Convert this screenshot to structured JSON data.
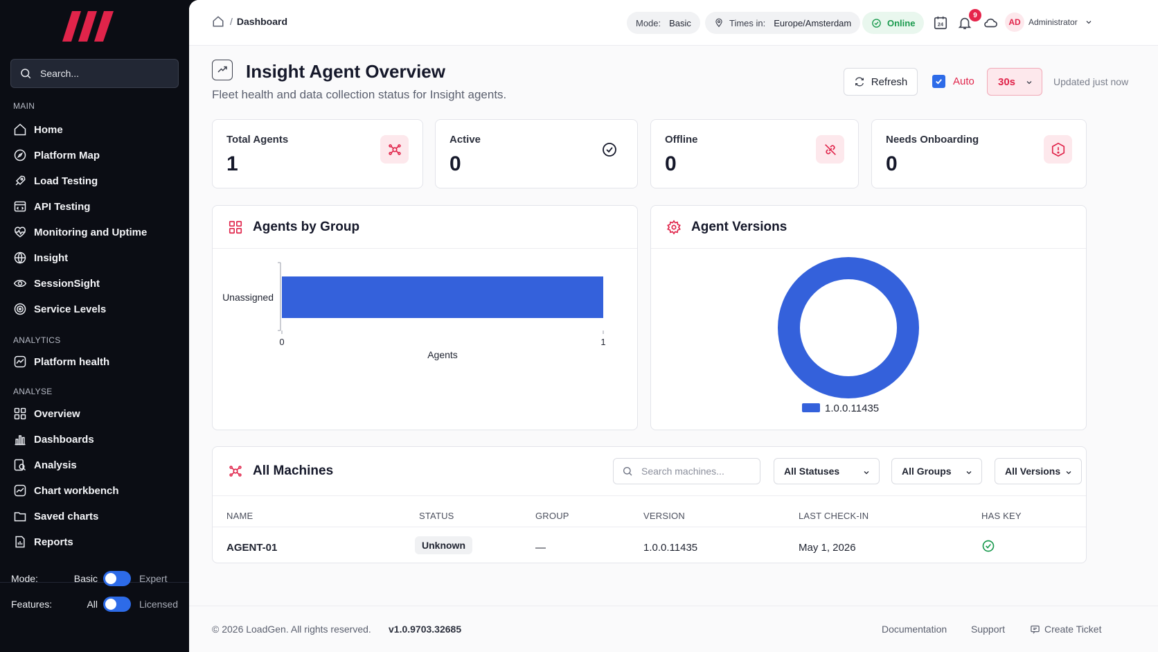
{
  "sidebar": {
    "search_placeholder": "Search...",
    "sections": {
      "main": "MAIN",
      "analytics": "ANALYTICS",
      "analyse": "ANALYSE"
    },
    "main_items": [
      {
        "label": "Home",
        "icon": "home-icon"
      },
      {
        "label": "Platform Map",
        "icon": "compass-icon"
      },
      {
        "label": "Load Testing",
        "icon": "rocket-icon"
      },
      {
        "label": "API Testing",
        "icon": "api-icon"
      },
      {
        "label": "Monitoring and Uptime",
        "icon": "heart-pulse-icon"
      },
      {
        "label": "Insight",
        "icon": "globe-icon"
      },
      {
        "label": "SessionSight",
        "icon": "eye-icon"
      },
      {
        "label": "Service Levels",
        "icon": "target-icon"
      }
    ],
    "analytics_items": [
      {
        "label": "Platform health",
        "icon": "activity-icon"
      }
    ],
    "analyse_items": [
      {
        "label": "Overview",
        "icon": "grid-icon"
      },
      {
        "label": "Dashboards",
        "icon": "bar-chart-icon"
      },
      {
        "label": "Analysis",
        "icon": "analysis-icon"
      },
      {
        "label": "Chart workbench",
        "icon": "chart-line-icon"
      },
      {
        "label": "Saved charts",
        "icon": "folder-icon"
      },
      {
        "label": "Reports",
        "icon": "report-icon"
      }
    ],
    "mode": {
      "label": "Mode:",
      "option_on": "Basic",
      "option_off": "Expert"
    },
    "features": {
      "label": "Features:",
      "option_on": "All",
      "option_off": "Licensed"
    }
  },
  "topbar": {
    "breadcrumb": "Dashboard",
    "mode_label": "Mode:",
    "mode_value": "Basic",
    "timezone_label": "Times in:",
    "timezone_value": "Europe/Amsterdam",
    "status": "Online",
    "notification_count": "9",
    "user_initials": "AD",
    "user_name": "Administrator"
  },
  "page": {
    "title": "Insight Agent Overview",
    "subtitle": "Fleet health and data collection status for Insight agents.",
    "refresh_label": "Refresh",
    "auto_label": "Auto",
    "interval": "30s",
    "updated": "Updated just now"
  },
  "kpis": [
    {
      "label": "Total Agents",
      "value": "1"
    },
    {
      "label": "Active",
      "value": "0"
    },
    {
      "label": "Offline",
      "value": "0"
    },
    {
      "label": "Needs Onboarding",
      "value": "0"
    }
  ],
  "agents_by_group": {
    "title": "Agents by Group",
    "chart_data": {
      "type": "bar",
      "orientation": "horizontal",
      "categories": [
        "Unassigned"
      ],
      "values": [
        1
      ],
      "xlabel": "Agents",
      "xlim": [
        0,
        1
      ],
      "ticks": [
        "0",
        "1"
      ],
      "color": "#3461db"
    }
  },
  "agent_versions": {
    "title": "Agent Versions",
    "chart_data": {
      "type": "pie",
      "donut": true,
      "labels": [
        "1.0.0.11435"
      ],
      "values": [
        1
      ],
      "color": "#3461db"
    }
  },
  "machines": {
    "title": "All Machines",
    "search_placeholder": "Search machines...",
    "filters": [
      "All Statuses",
      "All Groups",
      "All Versions"
    ],
    "columns": [
      "NAME",
      "STATUS",
      "GROUP",
      "VERSION",
      "LAST CHECK-IN",
      "HAS KEY"
    ],
    "rows": [
      {
        "name": "AGENT-01",
        "status": "Unknown",
        "group": "—",
        "version": "1.0.0.11435",
        "last_checkin": "May 1, 2026",
        "has_key": "check-circle-icon"
      }
    ]
  },
  "footer": {
    "copyright": "© 2026 LoadGen. All rights reserved.",
    "version": "v1.0.9703.32685",
    "links": [
      "Documentation",
      "Support",
      "Create Ticket"
    ]
  },
  "colors": {
    "accent": "#e0244a",
    "primary": "#2d6be8",
    "chart": "#3461db",
    "success": "#1a9a4e"
  }
}
